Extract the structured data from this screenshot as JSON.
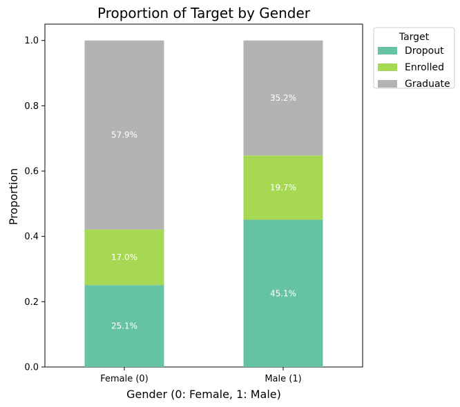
{
  "chart_data": {
    "type": "bar",
    "stacked": true,
    "title": "Proportion of Target by Gender",
    "xlabel": "Gender (0: Female, 1: Male)",
    "ylabel": "Proportion",
    "categories": [
      "Female (0)",
      "Male (1)"
    ],
    "ylim": [
      0,
      1.05
    ],
    "yticks": [
      "0.0",
      "0.2",
      "0.4",
      "0.6",
      "0.8",
      "1.0"
    ],
    "grid": false,
    "legend": {
      "title": "Target",
      "placement": "outside-top-right"
    },
    "series": [
      {
        "name": "Dropout",
        "color": "#66c2a5",
        "values": [
          0.251,
          0.451
        ],
        "labels": [
          "25.1%",
          "45.1%"
        ]
      },
      {
        "name": "Enrolled",
        "color": "#a6d854",
        "values": [
          0.17,
          0.197
        ],
        "labels": [
          "17.0%",
          "19.7%"
        ]
      },
      {
        "name": "Graduate",
        "color": "#b3b3b3",
        "values": [
          0.579,
          0.352
        ],
        "labels": [
          "57.9%",
          "35.2%"
        ]
      }
    ]
  }
}
